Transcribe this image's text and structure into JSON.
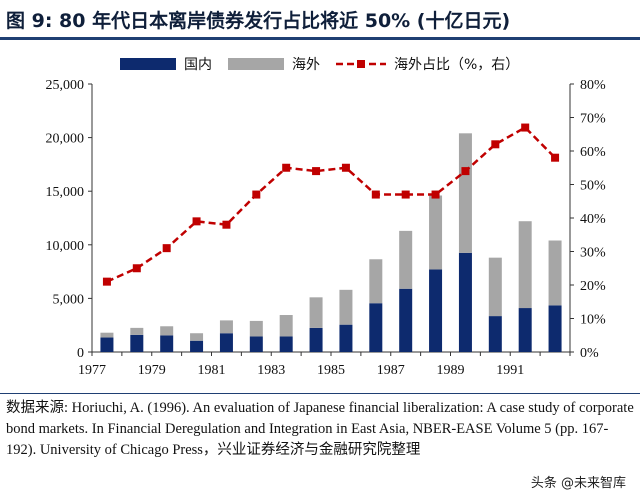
{
  "title": "图 9:  80 年代日本离岸债券发行占比将近 50% (十亿日元)",
  "chart_data": {
    "type": "bar",
    "stacked": true,
    "title": "图 9:  80 年代日本离岸债券发行占比将近 50% (十亿日元)",
    "years": [
      1977,
      1978,
      1979,
      1980,
      1981,
      1982,
      1983,
      1984,
      1985,
      1986,
      1987,
      1988,
      1989,
      1990,
      1991,
      1992
    ],
    "x_tick_labels": [
      "1977",
      "1979",
      "1981",
      "1983",
      "1985",
      "1987",
      "1989",
      "1991"
    ],
    "series": [
      {
        "name": "国内",
        "kind": "bar",
        "axis": "left",
        "color": "#0d2a6e",
        "values": [
          1350,
          1600,
          1550,
          1050,
          1750,
          1450,
          1450,
          2250,
          2550,
          4550,
          5900,
          7700,
          9250,
          3350,
          4100,
          4350
        ]
      },
      {
        "name": "海外",
        "kind": "bar",
        "axis": "left",
        "color": "#a6a6a6",
        "values": [
          450,
          650,
          850,
          700,
          1200,
          1450,
          2000,
          2850,
          3250,
          4100,
          5400,
          6900,
          11150,
          5450,
          8100,
          6050
        ]
      },
      {
        "name": "海外占比（%，右）",
        "kind": "line",
        "axis": "right",
        "color": "#c00000",
        "values": [
          21,
          25,
          31,
          39,
          38,
          47,
          55,
          54,
          55,
          47,
          47,
          47,
          54,
          62,
          67,
          58
        ]
      }
    ],
    "y_left": {
      "min": 0,
      "max": 25000,
      "step": 5000,
      "tick_labels": [
        "0",
        "5,000",
        "10,000",
        "15,000",
        "20,000",
        "25,000"
      ]
    },
    "y_right": {
      "min": 0,
      "max": 80,
      "step": 10,
      "tick_labels": [
        "0%",
        "10%",
        "20%",
        "30%",
        "40%",
        "50%",
        "60%",
        "70%",
        "80%"
      ]
    },
    "legend_position": "top",
    "grid": false
  },
  "source": "数据来源: Horiuchi, A. (1996). An evaluation of Japanese financial liberalization: A case study of corporate bond markets. In Financial Deregulation and Integration in East Asia, NBER-EASE Volume 5 (pp. 167-192). University of Chicago Press，兴业证券经济与金融研究院整理",
  "watermark": "头条 @未来智库"
}
